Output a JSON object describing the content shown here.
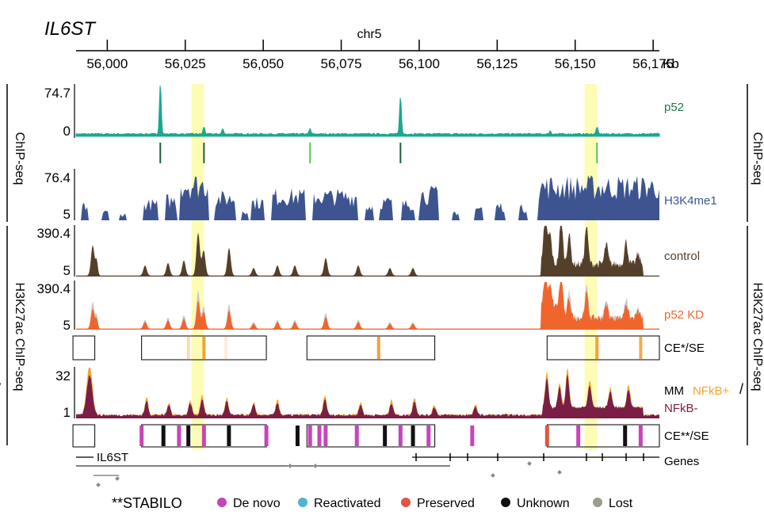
{
  "figure": {
    "gene_title": "IL6ST",
    "chromosome": "chr5",
    "axis": {
      "start_kb": 55990,
      "end_kb": 56177,
      "ticks": [
        "56,000",
        "56,025",
        "56,050",
        "56,075",
        "56,100",
        "56,125",
        "56,150",
        "56,175"
      ],
      "tick_values": [
        56000,
        56025,
        56050,
        56075,
        56100,
        56125,
        56150,
        56175
      ],
      "unit": "Kb"
    },
    "highlights_kb": [
      [
        56027,
        56031
      ],
      [
        56153,
        56157
      ]
    ],
    "side_labels": {
      "left_chip": "ChIP-seq",
      "left_h3k27": "H3K27ac ChIP-seq",
      "right_chip": "ChIP-seq",
      "right_h3k27": "H3K27ac ChIP-seq"
    },
    "tracks": {
      "p52": {
        "label": "p52",
        "max": "74.7",
        "min": "0",
        "color": "#1aa88e",
        "peaks_kb": [
          56017,
          56031,
          56037,
          56065,
          56094,
          56142,
          56157
        ],
        "peak_heights": [
          1.0,
          0.14,
          0.1,
          0.1,
          0.75,
          0.06,
          0.14
        ]
      },
      "p52_marks": {
        "dark_kb": [
          56017,
          56031,
          56094
        ],
        "light_kb": [
          56065,
          56157
        ],
        "dark_color": "#1f5c3a",
        "light_color": "#5cc35c"
      },
      "h3k4me1": {
        "label": "H3K4me1",
        "max": "76.4",
        "min": "5",
        "color": "#3d5490"
      },
      "control": {
        "label": "control",
        "max": "390.4",
        "min": "5",
        "color": "#54402a"
      },
      "p52kd": {
        "label": "p52 KD",
        "max": "390.4",
        "min": "5",
        "color": "#f0652c",
        "ghost_color": "#c8c8c8"
      },
      "ce_se": {
        "label": "CE*/SE",
        "boxes_kb": [
          [
            55989,
            55996
          ],
          [
            56011,
            56051
          ],
          [
            56064,
            56105
          ],
          [
            56141,
            56177
          ]
        ],
        "bars_kb": [
          56026,
          56031,
          56038,
          56087,
          56157,
          56171
        ],
        "bar_alpha": [
          0.4,
          1,
          0.2,
          1,
          1,
          0.9
        ],
        "bar_color": "#f2a23a"
      },
      "mm": {
        "label_mm": "MM",
        "label_plus": "NFkB+",
        "label_minus": "NFkB-",
        "slash": "/",
        "max": "32",
        "min": "1",
        "plus_color": "#f5a32c",
        "minus_color": "#7a1e45"
      },
      "ce2": {
        "label": "CE**/SE",
        "boxes_kb": [
          [
            55989,
            55996
          ],
          [
            56011,
            56051
          ],
          [
            56064,
            56105
          ],
          [
            56141,
            56177
          ]
        ],
        "bars": [
          {
            "kb": 56011,
            "c": "purple"
          },
          {
            "kb": 56018,
            "c": "black"
          },
          {
            "kb": 56023,
            "c": "purple"
          },
          {
            "kb": 56026,
            "c": "black"
          },
          {
            "kb": 56031,
            "c": "purple"
          },
          {
            "kb": 56039,
            "c": "black"
          },
          {
            "kb": 56051,
            "c": "purple"
          },
          {
            "kb": 56061,
            "c": "black"
          },
          {
            "kb": 56065,
            "c": "purple"
          },
          {
            "kb": 56068,
            "c": "purple"
          },
          {
            "kb": 56070,
            "c": "purple"
          },
          {
            "kb": 56080,
            "c": "purple"
          },
          {
            "kb": 56089,
            "c": "black"
          },
          {
            "kb": 56094,
            "c": "purple"
          },
          {
            "kb": 56098,
            "c": "black"
          },
          {
            "kb": 56103,
            "c": "purple"
          },
          {
            "kb": 56117,
            "c": "purple"
          },
          {
            "kb": 56141,
            "c": "red"
          },
          {
            "kb": 56151,
            "c": "purple"
          },
          {
            "kb": 56166,
            "c": "black"
          },
          {
            "kb": 56171,
            "c": "purple"
          }
        ]
      },
      "genes": {
        "label": "Genes",
        "gene_name": "IL6ST"
      }
    },
    "legend": {
      "title": "**STABILO",
      "items": [
        {
          "label": "De novo",
          "color": "#c545b8"
        },
        {
          "label": "Reactivated",
          "color": "#4fb5d0"
        },
        {
          "label": "Preserved",
          "color": "#e0553f"
        },
        {
          "label": "Unknown",
          "color": "#111111"
        },
        {
          "label": "Lost",
          "color": "#9a9d8a"
        }
      ]
    }
  }
}
